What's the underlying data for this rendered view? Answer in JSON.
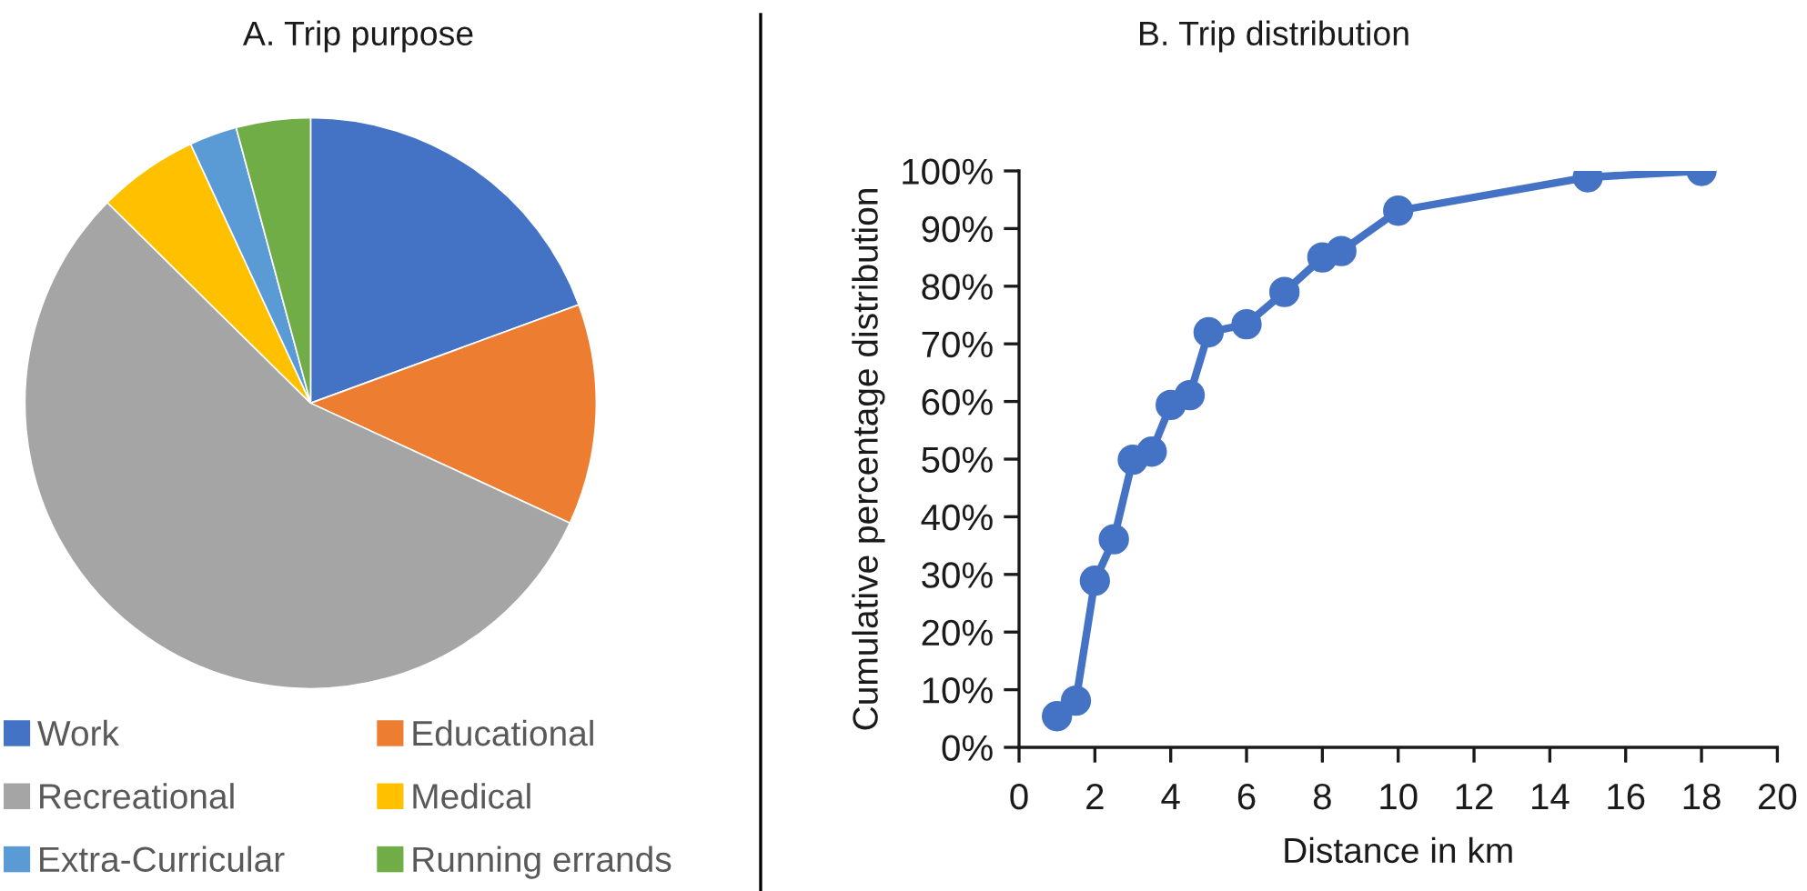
{
  "chart_data": [
    {
      "type": "pie",
      "title": "A. Trip purpose",
      "categories": [
        "Work",
        "Educational",
        "Recreational",
        "Medical",
        "Extra-Curricular",
        "Running errands"
      ],
      "values": [
        19.4,
        12.5,
        55.5,
        5.7,
        2.7,
        4.2
      ],
      "colors": [
        "#4472c4",
        "#ed7d31",
        "#a5a5a5",
        "#ffc000",
        "#5b9bd5",
        "#70ad47"
      ],
      "legend": "bottom"
    },
    {
      "type": "line",
      "title": "B. Trip distribution",
      "xlabel": "Distance in km",
      "ylabel": "Cumulative percentage distribution",
      "x": [
        1,
        1.5,
        2,
        2.5,
        3,
        3.5,
        4,
        4.5,
        5,
        6,
        7,
        8,
        8.5,
        10,
        15,
        18
      ],
      "series": [
        {
          "color": "#4472c4",
          "values": [
            5.4,
            8.1,
            28.9,
            36.1,
            49.9,
            51.3,
            59.4,
            61.1,
            72.0,
            73.4,
            79.0,
            85.0,
            86.1,
            93.1,
            98.9,
            100
          ]
        }
      ],
      "xlim": [
        0,
        20
      ],
      "xticks": [
        0,
        2,
        4,
        6,
        8,
        10,
        12,
        14,
        16,
        18,
        20
      ],
      "ylim": [
        0,
        100
      ],
      "yticks": [
        {
          "value": 0,
          "label": "0%"
        },
        {
          "value": 10,
          "label": "10%"
        },
        {
          "value": 20,
          "label": "20%"
        },
        {
          "value": 30,
          "label": "30%"
        },
        {
          "value": 40,
          "label": "40%"
        },
        {
          "value": 50,
          "label": "50%"
        },
        {
          "value": 60,
          "label": "60%"
        },
        {
          "value": 70,
          "label": "70%"
        },
        {
          "value": 80,
          "label": "80%"
        },
        {
          "value": 90,
          "label": "90%"
        },
        {
          "value": 100,
          "label": "100%"
        }
      ],
      "marker": "circle",
      "line_style": "solid",
      "grid": false
    }
  ]
}
